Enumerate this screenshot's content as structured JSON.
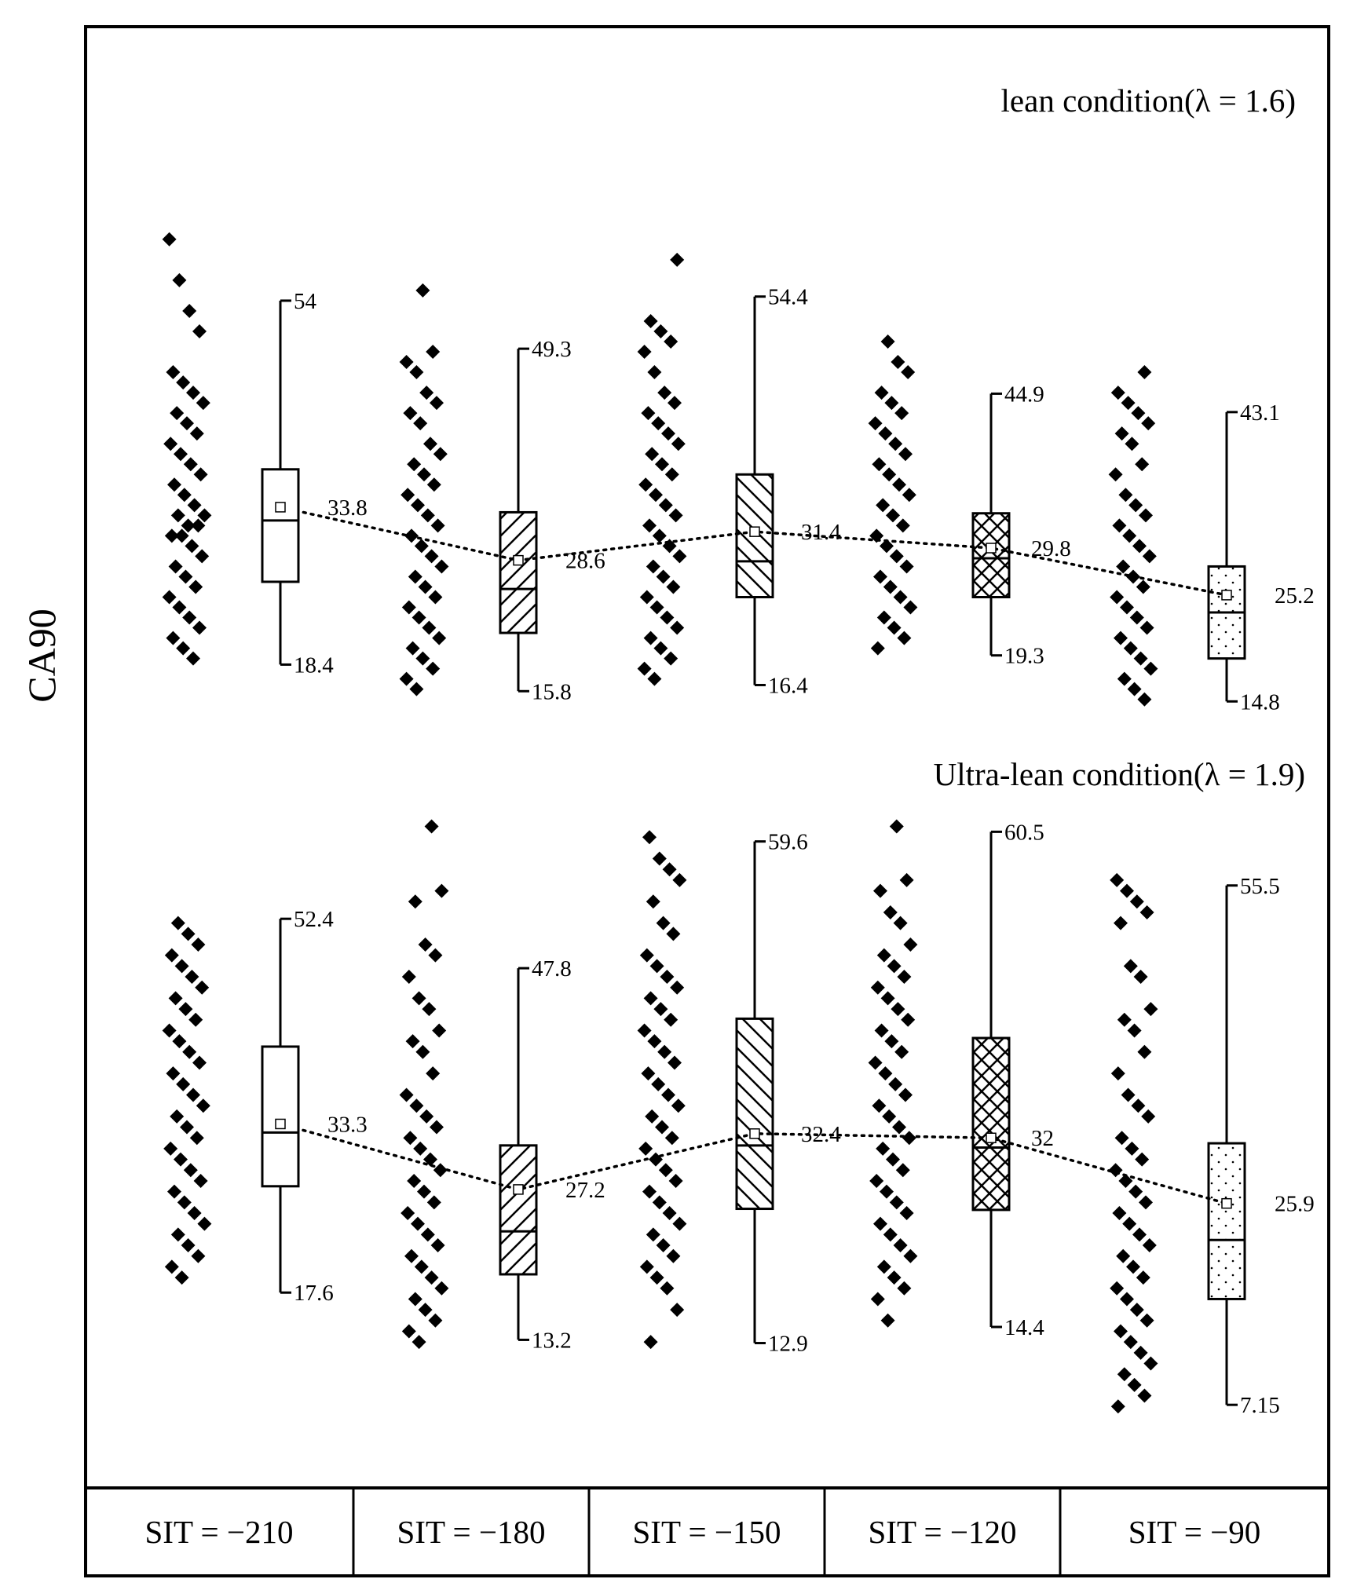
{
  "chart_data": {
    "type": "box",
    "ylabel": "CA90",
    "categories": [
      "SIT = −210",
      "SIT = −180",
      "SIT = −150",
      "SIT = −120",
      "SIT = −90"
    ],
    "panels": [
      {
        "title": "lean condition(λ = 1.6)",
        "series": [
          {
            "category": "SIT = −210",
            "max": 54,
            "min": 18.4,
            "q1": 26.5,
            "median": 32.5,
            "q3": 37.5,
            "mean": 33.8,
            "points": [
              60,
              56,
              53,
              51,
              47,
              46,
              45,
              44,
              43,
              42,
              41,
              40,
              39,
              38,
              37,
              36,
              35,
              34,
              33,
              33,
              32,
              32,
              31,
              31,
              30,
              29,
              28,
              27,
              26,
              25,
              24,
              23,
              22,
              21,
              20,
              19
            ]
          },
          {
            "category": "SIT = −180",
            "max": 49.3,
            "min": 15.8,
            "q1": 21.5,
            "median": 25.8,
            "q3": 33.3,
            "mean": 28.6,
            "points": [
              55,
              49,
              48,
              47,
              45,
              44,
              43,
              42,
              40,
              39,
              38,
              37,
              36,
              35,
              34,
              33,
              32,
              31,
              30,
              29,
              28,
              27,
              26,
              25,
              24,
              23,
              22,
              21,
              20,
              19,
              18,
              17,
              16
            ]
          },
          {
            "category": "SIT = −150",
            "max": 54.4,
            "min": 16.4,
            "q1": 25,
            "median": 28.5,
            "q3": 37,
            "mean": 31.4,
            "points": [
              58,
              52,
              51,
              50,
              49,
              47,
              45,
              44,
              43,
              42,
              41,
              40,
              39,
              38,
              37,
              36,
              35,
              34,
              33,
              32,
              31,
              30,
              29,
              28,
              27,
              26,
              25,
              24,
              23,
              22,
              21,
              20,
              19,
              18,
              17
            ]
          },
          {
            "category": "SIT = −120",
            "max": 44.9,
            "min": 19.3,
            "q1": 25,
            "median": 28.8,
            "q3": 33.2,
            "mean": 29.8,
            "points": [
              50,
              48,
              47,
              45,
              44,
              43,
              42,
              41,
              40,
              39,
              38,
              37,
              36,
              35,
              34,
              33,
              32,
              31,
              30,
              29,
              28,
              27,
              26,
              25,
              24,
              23,
              22,
              21,
              20
            ]
          },
          {
            "category": "SIT = −90",
            "max": 43.1,
            "min": 14.8,
            "q1": 19,
            "median": 23.5,
            "q3": 28,
            "mean": 25.2,
            "points": [
              47,
              45,
              44,
              43,
              42,
              41,
              40,
              38,
              37,
              35,
              34,
              33,
              32,
              31,
              30,
              29,
              28,
              27,
              26,
              25,
              24,
              23,
              22,
              21,
              20,
              19,
              18,
              17,
              16,
              15
            ]
          }
        ]
      },
      {
        "title": "Ultra-lean condition(λ = 1.9)",
        "series": [
          {
            "category": "SIT = −210",
            "max": 52.4,
            "min": 17.6,
            "q1": 27.5,
            "median": 32.5,
            "q3": 40.5,
            "mean": 33.3,
            "points": [
              52,
              51,
              50,
              49,
              48,
              47,
              46,
              45,
              44,
              43,
              42,
              41,
              40,
              39,
              38,
              37,
              36,
              35,
              34,
              33,
              32,
              31,
              30,
              29,
              28,
              27,
              26,
              25,
              24,
              23,
              22,
              21,
              20,
              19
            ]
          },
          {
            "category": "SIT = −180",
            "max": 47.8,
            "min": 13.2,
            "q1": 19.3,
            "median": 23.3,
            "q3": 31.3,
            "mean": 27.2,
            "points": [
              61,
              55,
              54,
              50,
              49,
              47,
              45,
              44,
              42,
              41,
              40,
              38,
              36,
              35,
              34,
              33,
              32,
              31,
              30,
              29,
              28,
              27,
              26,
              25,
              24,
              23,
              22,
              21,
              20,
              19,
              18,
              17,
              16,
              15,
              14,
              13
            ]
          },
          {
            "category": "SIT = −150",
            "max": 59.6,
            "min": 12.9,
            "q1": 25.4,
            "median": 31.3,
            "q3": 43.1,
            "mean": 32.4,
            "points": [
              60,
              58,
              57,
              56,
              54,
              52,
              51,
              49,
              48,
              47,
              46,
              45,
              44,
              43,
              42,
              41,
              40,
              39,
              38,
              37,
              36,
              35,
              34,
              33,
              32,
              31,
              30,
              29,
              28,
              27,
              26,
              25,
              24,
              23,
              22,
              21,
              20,
              19,
              18,
              16,
              13
            ]
          },
          {
            "category": "SIT = −120",
            "max": 60.5,
            "min": 14.4,
            "q1": 25.3,
            "median": 31.1,
            "q3": 41.3,
            "mean": 32,
            "points": [
              61,
              56,
              55,
              53,
              52,
              50,
              49,
              48,
              47,
              46,
              45,
              44,
              43,
              42,
              41,
              40,
              39,
              38,
              37,
              36,
              35,
              34,
              33,
              32,
              31,
              30,
              29,
              28,
              27,
              26,
              25,
              24,
              23,
              22,
              21,
              20,
              19,
              18,
              17,
              15
            ]
          },
          {
            "category": "SIT = −90",
            "max": 55.5,
            "min": 7.15,
            "q1": 17,
            "median": 22.5,
            "q3": 31.5,
            "mean": 25.9,
            "points": [
              56,
              55,
              54,
              53,
              52,
              48,
              47,
              44,
              43,
              42,
              40,
              38,
              36,
              35,
              34,
              32,
              31,
              30,
              29,
              28,
              27,
              26,
              25,
              24,
              23,
              22,
              21,
              20,
              19,
              18,
              17,
              16,
              15,
              14,
              13,
              12,
              11,
              10,
              9,
              8,
              7
            ]
          }
        ]
      }
    ]
  }
}
